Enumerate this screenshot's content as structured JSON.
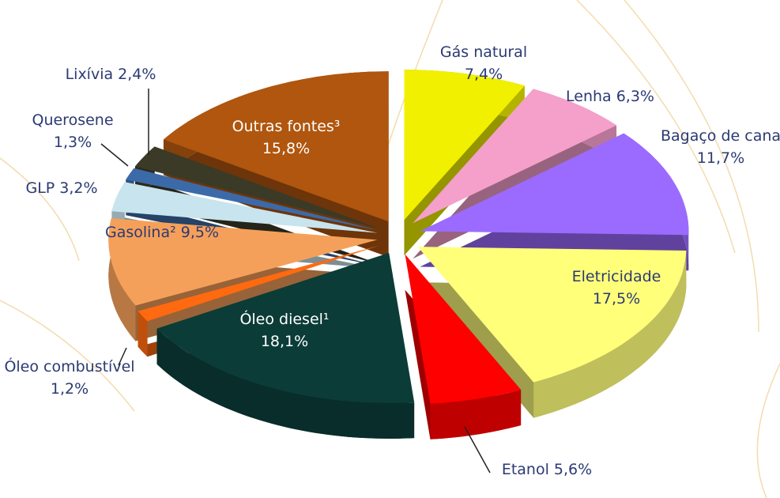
{
  "chart_data": {
    "type": "pie",
    "categories": [
      "Gás natural",
      "Lenha",
      "Bagaço de cana",
      "Eletricidade",
      "Etanol",
      "Óleo diesel¹",
      "Óleo combustível",
      "Gasolina²",
      "GLP",
      "Querosene",
      "Lixívia",
      "Outras fontes³"
    ],
    "values": [
      7.4,
      6.3,
      11.7,
      17.5,
      5.6,
      18.1,
      1.2,
      9.5,
      3.2,
      1.3,
      2.4,
      15.8
    ],
    "value_labels": [
      "7,4%",
      "6,3%",
      "11,7%",
      "17,5%",
      "5,6%",
      "18,1%",
      "1,2%",
      "9,5%",
      "3,2%",
      "1,3%",
      "2,4%",
      "15,8%"
    ],
    "colors": [
      "#f0f000",
      "#f59fcb",
      "#9b6bff",
      "#ffff7a",
      "#ff0000",
      "#0b3c38",
      "#ff6a10",
      "#f5a05a",
      "#c8e4ee",
      "#3c6aa8",
      "#3a3a26",
      "#b0560e"
    ]
  }
}
